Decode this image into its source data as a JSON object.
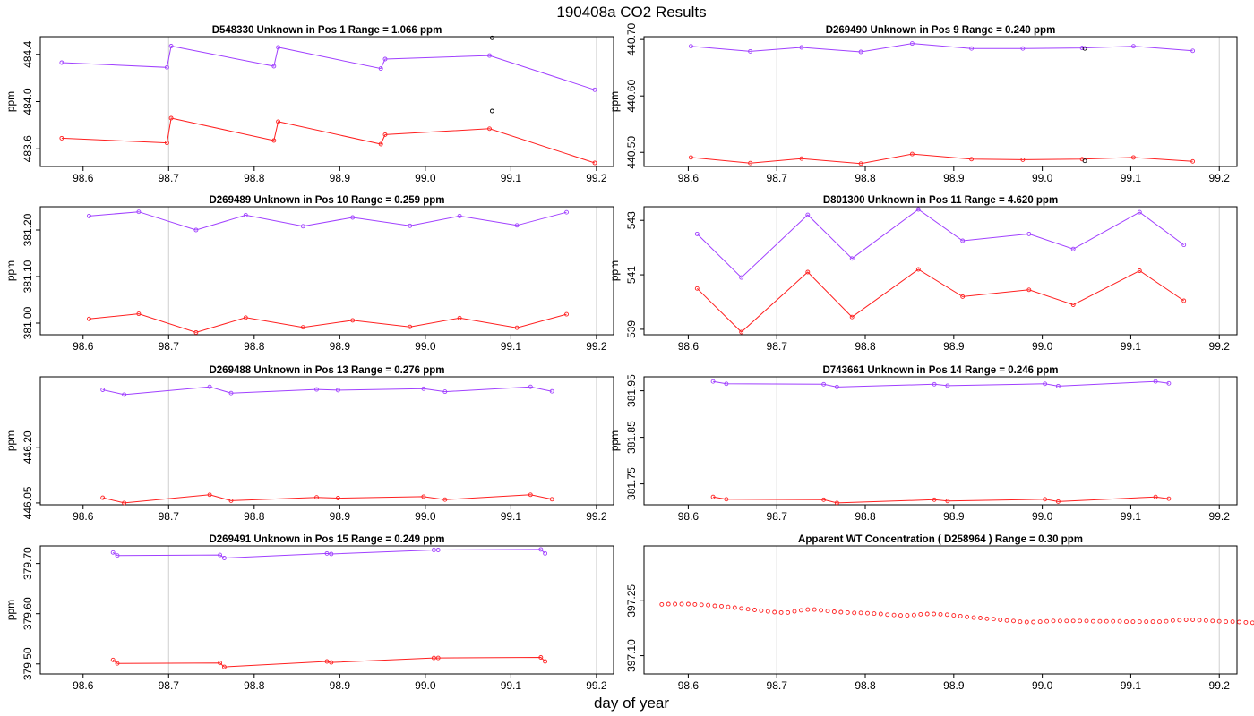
{
  "page_title": "190408a  CO2 Results",
  "x_axis_label": "day of year",
  "colors": {
    "upper_series": "#a040ff",
    "lower_series": "#ff2020",
    "reference_line": "#cfcfcf",
    "frame": "#000000"
  },
  "chart_data": [
    {
      "type": "line",
      "title": "D548330    Unknown in Pos 1          Range =  1.066 ppm",
      "xlabel": "",
      "ylabel": "ppm",
      "xlim": [
        98.55,
        99.22
      ],
      "ylim": [
        483.45,
        484.55
      ],
      "x_ticks": [
        98.6,
        98.7,
        98.8,
        98.9,
        99.0,
        99.1,
        99.2
      ],
      "x_tick_labels": [
        "98.6",
        "98.7",
        "98.8",
        "98.9",
        "99.0",
        "99.1",
        "99.2"
      ],
      "y_ticks": [
        483.6,
        484.0,
        484.4
      ],
      "y_tick_labels": [
        "483.6",
        "484.0",
        "484.4"
      ],
      "ref_lines": [
        98.7,
        99.2
      ],
      "grid": false,
      "series": [
        {
          "color": "#a040ff",
          "x": [
            98.575,
            98.698,
            98.703,
            98.823,
            98.828,
            98.948,
            98.953,
            99.075,
            99.198
          ],
          "y": [
            484.33,
            484.29,
            484.47,
            484.3,
            484.46,
            484.28,
            484.36,
            484.39,
            484.1
          ]
        },
        {
          "color": "#ff2020",
          "x": [
            98.575,
            98.698,
            98.703,
            98.823,
            98.828,
            98.948,
            98.953,
            99.075,
            99.198
          ],
          "y": [
            483.69,
            483.65,
            483.86,
            483.67,
            483.83,
            483.64,
            483.72,
            483.77,
            483.48
          ]
        },
        {
          "color": "#000000",
          "mode": "markers",
          "x": [
            99.078,
            99.078
          ],
          "y": [
            484.54,
            483.92
          ]
        }
      ]
    },
    {
      "type": "line",
      "title": "D269490    Unknown in Pos 9          Range =  0.240 ppm",
      "xlabel": "",
      "ylabel": "ppm",
      "xlim": [
        98.55,
        99.22
      ],
      "ylim": [
        440.475,
        440.705
      ],
      "x_ticks": [
        98.6,
        98.7,
        98.8,
        98.9,
        99.0,
        99.1,
        99.2
      ],
      "x_tick_labels": [
        "98.6",
        "98.7",
        "98.8",
        "98.9",
        "99.0",
        "99.1",
        "99.2"
      ],
      "y_ticks": [
        440.5,
        440.6,
        440.7
      ],
      "y_tick_labels": [
        "440.50",
        "440.60",
        "440.70"
      ],
      "ref_lines": [
        98.7,
        99.2
      ],
      "grid": false,
      "series": [
        {
          "color": "#a040ff",
          "x": [
            98.603,
            98.67,
            98.728,
            98.795,
            98.853,
            98.92,
            98.978,
            99.045,
            99.103,
            99.17
          ],
          "y": [
            440.688,
            440.679,
            440.686,
            440.678,
            440.693,
            440.684,
            440.684,
            440.685,
            440.688,
            440.68
          ]
        },
        {
          "color": "#ff2020",
          "x": [
            98.603,
            98.67,
            98.728,
            98.795,
            98.853,
            98.92,
            98.978,
            99.045,
            99.103,
            99.17
          ],
          "y": [
            440.491,
            440.481,
            440.489,
            440.48,
            440.497,
            440.488,
            440.487,
            440.488,
            440.491,
            440.484
          ]
        },
        {
          "color": "#000000",
          "mode": "markers",
          "x": [
            99.048,
            99.048
          ],
          "y": [
            440.684,
            440.485
          ]
        }
      ]
    },
    {
      "type": "line",
      "title": "D269489    Unknown in Pos 10          Range =  0.259 ppm",
      "xlabel": "",
      "ylabel": "ppm",
      "xlim": [
        98.55,
        99.22
      ],
      "ylim": [
        380.975,
        381.25
      ],
      "x_ticks": [
        98.6,
        98.7,
        98.8,
        98.9,
        99.0,
        99.1,
        99.2
      ],
      "x_tick_labels": [
        "98.6",
        "98.7",
        "98.8",
        "98.9",
        "99.0",
        "99.1",
        "99.2"
      ],
      "y_ticks": [
        381.0,
        381.1,
        381.2
      ],
      "y_tick_labels": [
        "381.00",
        "381.10",
        "381.20"
      ],
      "ref_lines": [
        98.7,
        99.2
      ],
      "grid": false,
      "series": [
        {
          "color": "#a040ff",
          "x": [
            98.607,
            98.665,
            98.732,
            98.79,
            98.857,
            98.915,
            98.982,
            99.04,
            99.107,
            99.165
          ],
          "y": [
            381.23,
            381.239,
            381.2,
            381.232,
            381.208,
            381.227,
            381.209,
            381.23,
            381.21,
            381.238
          ]
        },
        {
          "color": "#ff2020",
          "x": [
            98.607,
            98.665,
            98.732,
            98.79,
            98.857,
            98.915,
            98.982,
            99.04,
            99.107,
            99.165
          ],
          "y": [
            381.009,
            381.02,
            380.98,
            381.012,
            380.991,
            381.006,
            380.992,
            381.011,
            380.99,
            381.019
          ]
        }
      ]
    },
    {
      "type": "line",
      "title": "D801300    Unknown in Pos 11          Range =  4.620 ppm",
      "xlabel": "",
      "ylabel": "ppm",
      "xlim": [
        98.55,
        99.22
      ],
      "ylim": [
        538.8,
        543.5
      ],
      "x_ticks": [
        98.6,
        98.7,
        98.8,
        98.9,
        99.0,
        99.1,
        99.2
      ],
      "x_tick_labels": [
        "98.6",
        "98.7",
        "98.8",
        "98.9",
        "99.0",
        "99.1",
        "99.2"
      ],
      "y_ticks": [
        539,
        541,
        543
      ],
      "y_tick_labels": [
        "539",
        "541",
        "543"
      ],
      "ref_lines": [
        98.7,
        99.2
      ],
      "grid": false,
      "series": [
        {
          "color": "#a040ff",
          "x": [
            98.61,
            98.66,
            98.735,
            98.785,
            98.86,
            98.91,
            98.985,
            99.035,
            99.11,
            99.16
          ],
          "y": [
            542.5,
            540.9,
            543.2,
            541.6,
            543.4,
            542.25,
            542.5,
            541.95,
            543.3,
            542.1
          ]
        },
        {
          "color": "#ff2020",
          "x": [
            98.61,
            98.66,
            98.735,
            98.785,
            98.86,
            98.91,
            98.985,
            99.035,
            99.11,
            99.16
          ],
          "y": [
            540.5,
            538.9,
            541.1,
            539.45,
            541.2,
            540.2,
            540.45,
            539.9,
            541.15,
            540.05
          ]
        }
      ]
    },
    {
      "type": "line",
      "title": "D269488    Unknown in Pos 13          Range =  0.276 ppm",
      "xlabel": "",
      "ylabel": "ppm",
      "xlim": [
        98.55,
        99.22
      ],
      "ylim": [
        446.045,
        446.39
      ],
      "x_ticks": [
        98.6,
        98.7,
        98.8,
        98.9,
        99.0,
        99.1,
        99.2
      ],
      "x_tick_labels": [
        "98.6",
        "98.7",
        "98.8",
        "98.9",
        "99.0",
        "99.1",
        "99.2"
      ],
      "y_ticks": [
        446.05,
        446.2
      ],
      "y_tick_labels": [
        "446.05",
        "446.20"
      ],
      "ref_lines": [
        98.7,
        99.2
      ],
      "grid": false,
      "series": [
        {
          "color": "#a040ff",
          "x": [
            98.623,
            98.648,
            98.748,
            98.773,
            98.873,
            98.898,
            98.998,
            99.023,
            99.123,
            99.148
          ],
          "y": [
            446.355,
            446.342,
            446.363,
            446.346,
            446.356,
            446.354,
            446.358,
            446.35,
            446.363,
            446.351
          ]
        },
        {
          "color": "#ff2020",
          "x": [
            98.623,
            98.648,
            98.748,
            98.773,
            98.873,
            98.898,
            98.998,
            99.023,
            99.123,
            99.148
          ],
          "y": [
            446.064,
            446.05,
            446.072,
            446.056,
            446.065,
            446.063,
            446.067,
            446.059,
            446.072,
            446.06
          ]
        }
      ]
    },
    {
      "type": "line",
      "title": "D743661    Unknown in Pos 14          Range =  0.246 ppm",
      "xlabel": "",
      "ylabel": "ppm",
      "xlim": [
        98.55,
        99.22
      ],
      "ylim": [
        381.705,
        381.98
      ],
      "x_ticks": [
        98.6,
        98.7,
        98.8,
        98.9,
        99.0,
        99.1,
        99.2
      ],
      "x_tick_labels": [
        "98.6",
        "98.7",
        "98.8",
        "98.9",
        "99.0",
        "99.1",
        "99.2"
      ],
      "y_ticks": [
        381.75,
        381.85,
        381.95
      ],
      "y_tick_labels": [
        "381.75",
        "381.85",
        "381.95"
      ],
      "ref_lines": [
        98.7,
        99.2
      ],
      "grid": false,
      "series": [
        {
          "color": "#a040ff",
          "x": [
            98.628,
            98.643,
            98.753,
            98.768,
            98.878,
            98.893,
            99.003,
            99.018,
            99.128,
            99.143
          ],
          "y": [
            381.97,
            381.965,
            381.964,
            381.958,
            381.964,
            381.961,
            381.965,
            381.96,
            381.97,
            381.966
          ]
        },
        {
          "color": "#ff2020",
          "x": [
            98.628,
            98.643,
            98.753,
            98.768,
            98.878,
            98.893,
            99.003,
            99.018,
            99.128,
            99.143
          ],
          "y": [
            381.722,
            381.717,
            381.716,
            381.709,
            381.716,
            381.713,
            381.717,
            381.712,
            381.722,
            381.718
          ]
        }
      ]
    },
    {
      "type": "line",
      "title": "D269491    Unknown in Pos 15          Range =  0.249 ppm",
      "xlabel": "",
      "ylabel": "ppm",
      "xlim": [
        98.55,
        99.22
      ],
      "ylim": [
        379.48,
        379.735
      ],
      "x_ticks": [
        98.6,
        98.7,
        98.8,
        98.9,
        99.0,
        99.1,
        99.2
      ],
      "x_tick_labels": [
        "98.6",
        "98.7",
        "98.8",
        "98.9",
        "99.0",
        "99.1",
        "99.2"
      ],
      "y_ticks": [
        379.5,
        379.6,
        379.7
      ],
      "y_tick_labels": [
        "379.50",
        "379.60",
        "379.70"
      ],
      "ref_lines": [
        98.7,
        99.2
      ],
      "grid": false,
      "series": [
        {
          "color": "#a040ff",
          "x": [
            98.635,
            98.64,
            98.76,
            98.765,
            98.885,
            98.89,
            99.01,
            99.015,
            99.135,
            99.14
          ],
          "y": [
            379.722,
            379.716,
            379.717,
            379.711,
            379.72,
            379.719,
            379.727,
            379.727,
            379.728,
            379.72
          ]
        },
        {
          "color": "#ff2020",
          "x": [
            98.635,
            98.64,
            98.76,
            98.765,
            98.885,
            98.89,
            99.01,
            99.015,
            99.135,
            99.14
          ],
          "y": [
            379.508,
            379.501,
            379.502,
            379.494,
            379.505,
            379.503,
            379.512,
            379.512,
            379.513,
            379.505
          ]
        }
      ]
    },
    {
      "type": "scatter",
      "title": "Apparent WT Concentration ( D258964 )          Range = 0.30 ppm",
      "xlabel": "",
      "ylabel": "",
      "xlim": [
        98.55,
        99.22
      ],
      "ylim": [
        397.05,
        397.4
      ],
      "x_ticks": [
        98.6,
        98.7,
        98.8,
        98.9,
        99.0,
        99.1,
        99.2
      ],
      "x_tick_labels": [
        "98.6",
        "98.7",
        "98.8",
        "98.9",
        "99.0",
        "99.1",
        "99.2"
      ],
      "y_ticks": [
        397.1,
        397.25
      ],
      "y_tick_labels": [
        "397.10",
        "397.25"
      ],
      "ref_lines": [
        98.7,
        99.2
      ],
      "grid": false,
      "series": [
        {
          "color": "#ff2020",
          "mode": "markers",
          "x_start": 98.57,
          "x_step": 0.0075,
          "y": [
            397.24,
            397.241,
            397.241,
            397.241,
            397.241,
            397.24,
            397.239,
            397.238,
            397.236,
            397.235,
            397.233,
            397.231,
            397.229,
            397.227,
            397.225,
            397.223,
            397.221,
            397.219,
            397.218,
            397.218,
            397.221,
            397.224,
            397.226,
            397.226,
            397.224,
            397.222,
            397.22,
            397.219,
            397.218,
            397.217,
            397.217,
            397.216,
            397.215,
            397.214,
            397.212,
            397.211,
            397.21,
            397.21,
            397.211,
            397.213,
            397.214,
            397.214,
            397.213,
            397.212,
            397.21,
            397.208,
            397.206,
            397.204,
            397.203,
            397.201,
            397.2,
            397.198,
            397.196,
            397.195,
            397.193,
            397.192,
            397.192,
            397.193,
            397.194,
            397.195,
            397.195,
            397.195,
            397.195,
            397.195,
            397.195,
            397.194,
            397.194,
            397.194,
            397.194,
            397.194,
            397.193,
            397.193,
            397.193,
            397.193,
            397.193,
            397.193,
            397.194,
            397.196,
            397.197,
            397.198,
            397.198,
            397.197,
            397.196,
            397.195,
            397.194,
            397.193,
            397.193,
            397.192,
            397.191,
            397.19,
            397.189,
            397.189,
            397.188
          ]
        }
      ]
    }
  ]
}
